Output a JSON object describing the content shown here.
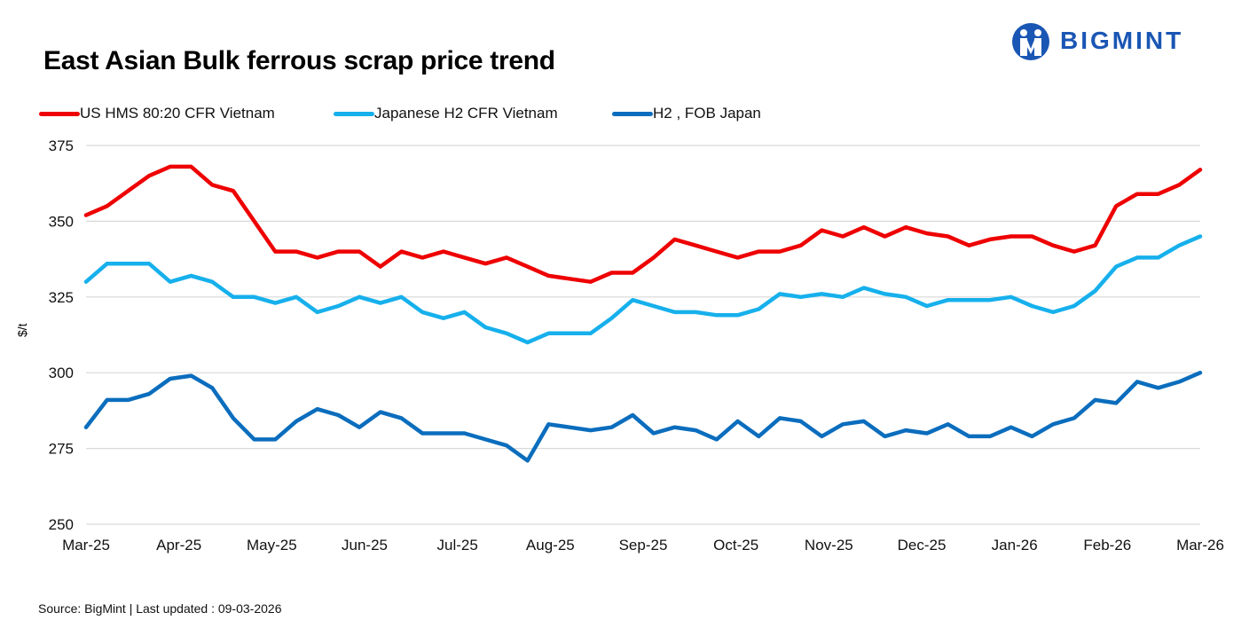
{
  "header": {
    "title": "East Asian Bulk ferrous scrap price trend",
    "logo_text": "BIGMINT"
  },
  "footer": {
    "source": "Source: BigMint  | Last updated : 09-03-2026"
  },
  "colors": {
    "us_hms": "#ee0000",
    "japanese_h2_cfr": "#16b0ec",
    "h2_fob": "#0b6dbd",
    "gridline": "#d9d9d9",
    "logo": "#1a56b4"
  },
  "chart_data": {
    "type": "line",
    "title": "East Asian Bulk ferrous scrap price trend",
    "ylabel": "$/t",
    "xlabel": "",
    "ylim": [
      250,
      375
    ],
    "yticks": [
      250,
      275,
      300,
      325,
      350,
      375
    ],
    "grid": true,
    "legend_position": "top-left",
    "x_tick_labels": [
      "Mar-25",
      "Apr-25",
      "May-25",
      "Jun-25",
      "Jul-25",
      "Aug-25",
      "Sep-25",
      "Oct-25",
      "Nov-25",
      "Dec-25",
      "Jan-26",
      "Feb-26",
      "Mar-26"
    ],
    "series": [
      {
        "name": "US HMS 80:20 CFR Vietnam",
        "color": "#ee0000",
        "values": [
          352,
          355,
          360,
          365,
          368,
          368,
          362,
          360,
          350,
          340,
          340,
          338,
          340,
          340,
          335,
          340,
          338,
          340,
          338,
          336,
          338,
          335,
          332,
          331,
          330,
          333,
          333,
          338,
          344,
          342,
          340,
          338,
          340,
          340,
          342,
          347,
          345,
          348,
          345,
          348,
          346,
          345,
          342,
          344,
          345,
          345,
          342,
          340,
          342,
          355,
          359,
          359,
          362,
          367
        ]
      },
      {
        "name": "Japanese H2 CFR Vietnam",
        "color": "#16b0ec",
        "values": [
          330,
          336,
          336,
          336,
          330,
          332,
          330,
          325,
          325,
          323,
          325,
          320,
          322,
          325,
          323,
          325,
          320,
          318,
          320,
          315,
          313,
          310,
          313,
          313,
          313,
          318,
          324,
          322,
          320,
          320,
          319,
          319,
          321,
          326,
          325,
          326,
          325,
          328,
          326,
          325,
          322,
          324,
          324,
          324,
          325,
          322,
          320,
          322,
          327,
          335,
          338,
          338,
          342,
          345
        ]
      },
      {
        "name": "H2 , FOB Japan",
        "color": "#0b6dbd",
        "values": [
          282,
          291,
          291,
          293,
          298,
          299,
          295,
          285,
          278,
          278,
          284,
          288,
          286,
          282,
          287,
          285,
          280,
          280,
          280,
          278,
          276,
          271,
          283,
          282,
          281,
          282,
          286,
          280,
          282,
          281,
          278,
          284,
          279,
          285,
          284,
          279,
          283,
          284,
          279,
          281,
          280,
          283,
          279,
          279,
          282,
          279,
          283,
          285,
          291,
          290,
          297,
          295,
          297,
          300
        ]
      }
    ]
  }
}
